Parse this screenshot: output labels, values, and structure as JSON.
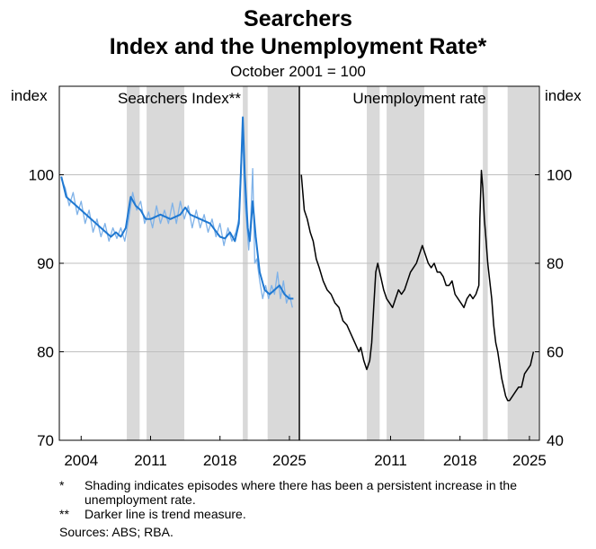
{
  "title": "Searchers",
  "title_line2": "Index and the Unemployment Rate*",
  "subtitle": "October 2001 = 100",
  "notes": [
    {
      "mark": "*",
      "text": "Shading indicates episodes where there has been a persistent increase in the unemployment rate."
    },
    {
      "mark": "**",
      "text": "Darker line is trend measure."
    }
  ],
  "source": "Sources: ABS; RBA.",
  "colors": {
    "left_series": "#1f78d1",
    "left_raw": "#7fb2e8",
    "right_series": "#000000",
    "shading": "#d9d9d9",
    "grid": "#bfbfbf"
  },
  "chart_data": [
    {
      "type": "line",
      "title": "Searchers Index**",
      "ylabel_left": "index",
      "ylim": [
        70,
        110
      ],
      "yticks": [
        70,
        80,
        90,
        100
      ],
      "xlim": [
        2001.8,
        2026.0
      ],
      "xticks": [
        "2004",
        "2011",
        "2018",
        "2025"
      ],
      "shaded_periods": [
        [
          2008.6,
          2009.9
        ],
        [
          2010.6,
          2014.4
        ],
        [
          2020.3,
          2020.8
        ],
        [
          2022.8,
          2025.9
        ]
      ],
      "series": [
        {
          "style": "trend",
          "x": [
            2002.0,
            2002.5,
            2003.0,
            2004.0,
            2005.0,
            2006.0,
            2007.0,
            2007.5,
            2008.0,
            2008.5,
            2009.0,
            2009.5,
            2010.0,
            2010.5,
            2011.0,
            2012.0,
            2013.0,
            2014.0,
            2014.5,
            2015.0,
            2016.0,
            2017.0,
            2018.0,
            2018.5,
            2019.0,
            2019.5,
            2019.9,
            2020.1,
            2020.3,
            2020.5,
            2020.8,
            2021.0,
            2021.3,
            2021.6,
            2022.0,
            2022.5,
            2023.0,
            2023.5,
            2024.0,
            2024.5,
            2025.0,
            2025.4
          ],
          "y": [
            99.8,
            97.5,
            97.0,
            96.0,
            95.0,
            94.0,
            93.0,
            93.5,
            93.0,
            94.0,
            97.5,
            96.5,
            96.0,
            95.0,
            95.0,
            95.5,
            95.0,
            95.5,
            96.3,
            95.5,
            95.0,
            94.5,
            93.0,
            92.8,
            93.5,
            92.5,
            94.5,
            100.0,
            106.5,
            100.0,
            94.0,
            92.5,
            97.0,
            93.0,
            89.0,
            87.0,
            86.5,
            87.0,
            87.5,
            86.5,
            86.0,
            86.0
          ]
        },
        {
          "style": "raw",
          "x": [
            2002.0,
            2002.4,
            2002.8,
            2003.2,
            2003.6,
            2004.0,
            2004.4,
            2004.8,
            2005.2,
            2005.6,
            2006.0,
            2006.4,
            2006.8,
            2007.2,
            2007.6,
            2008.0,
            2008.4,
            2008.8,
            2009.2,
            2009.6,
            2010.0,
            2010.4,
            2010.8,
            2011.2,
            2011.6,
            2012.0,
            2012.4,
            2012.8,
            2013.2,
            2013.6,
            2014.0,
            2014.4,
            2014.8,
            2015.2,
            2015.6,
            2016.0,
            2016.4,
            2016.8,
            2017.2,
            2017.6,
            2018.0,
            2018.4,
            2018.8,
            2019.2,
            2019.6,
            2019.9,
            2020.1,
            2020.3,
            2020.5,
            2020.7,
            2020.9,
            2021.1,
            2021.3,
            2021.5,
            2021.7,
            2022.0,
            2022.3,
            2022.6,
            2022.9,
            2023.2,
            2023.5,
            2023.8,
            2024.1,
            2024.4,
            2024.7,
            2025.0,
            2025.3
          ],
          "y": [
            99.5,
            98.5,
            96.5,
            98.0,
            95.5,
            97.0,
            94.5,
            96.0,
            93.5,
            95.0,
            93.0,
            94.5,
            92.5,
            94.0,
            92.8,
            94.0,
            92.5,
            95.0,
            98.0,
            96.0,
            97.0,
            94.5,
            95.8,
            94.0,
            96.5,
            94.5,
            96.0,
            94.5,
            96.8,
            94.5,
            97.0,
            95.0,
            96.5,
            94.0,
            96.0,
            94.0,
            95.5,
            93.5,
            95.0,
            93.0,
            94.5,
            92.0,
            94.0,
            92.5,
            93.5,
            95.0,
            101.0,
            104.0,
            97.0,
            94.5,
            91.5,
            95.0,
            100.7,
            90.0,
            90.5,
            88.0,
            86.0,
            87.5,
            86.0,
            87.5,
            86.5,
            89.0,
            86.0,
            88.0,
            85.5,
            86.5,
            85.0
          ]
        }
      ]
    },
    {
      "type": "line",
      "title": "Unemployment rate",
      "ylabel_right": "index",
      "ylim": [
        40,
        120
      ],
      "yticks": [
        40,
        60,
        80,
        100
      ],
      "xlim": [
        2001.8,
        2026.0
      ],
      "xticks": [
        "2011",
        "2018",
        "2025"
      ],
      "shaded_periods": [
        [
          2008.6,
          2009.9
        ],
        [
          2010.6,
          2014.4
        ],
        [
          2020.3,
          2020.8
        ],
        [
          2022.8,
          2025.9
        ]
      ],
      "series": [
        {
          "style": "monthly",
          "x": [
            2002.0,
            2002.3,
            2002.6,
            2002.9,
            2003.2,
            2003.5,
            2003.8,
            2004.2,
            2004.6,
            2005.0,
            2005.4,
            2005.8,
            2006.2,
            2006.6,
            2007.0,
            2007.4,
            2007.8,
            2008.0,
            2008.3,
            2008.6,
            2008.9,
            2009.1,
            2009.3,
            2009.5,
            2009.7,
            2010.0,
            2010.3,
            2010.6,
            2010.9,
            2011.2,
            2011.5,
            2011.8,
            2012.1,
            2012.4,
            2012.7,
            2013.0,
            2013.3,
            2013.6,
            2013.9,
            2014.2,
            2014.5,
            2014.8,
            2015.1,
            2015.4,
            2015.7,
            2016.0,
            2016.3,
            2016.6,
            2016.9,
            2017.2,
            2017.5,
            2017.8,
            2018.1,
            2018.4,
            2018.7,
            2019.0,
            2019.3,
            2019.6,
            2019.9,
            2020.0,
            2020.15,
            2020.3,
            2020.45,
            2020.6,
            2020.8,
            2021.0,
            2021.2,
            2021.4,
            2021.6,
            2021.8,
            2022.0,
            2022.2,
            2022.4,
            2022.6,
            2022.8,
            2023.0,
            2023.3,
            2023.6,
            2023.9,
            2024.2,
            2024.5,
            2024.8,
            2025.1,
            2025.4
          ],
          "y": [
            100.0,
            92.0,
            90.0,
            87.0,
            85.0,
            81.0,
            79.0,
            76.0,
            74.0,
            73.0,
            71.0,
            70.0,
            67.0,
            66.0,
            64.0,
            62.0,
            60.0,
            61.0,
            58.0,
            56.0,
            58.0,
            62.0,
            70.0,
            78.0,
            80.0,
            77.0,
            74.0,
            72.0,
            71.0,
            70.0,
            72.0,
            74.0,
            73.0,
            74.0,
            76.0,
            78.0,
            79.0,
            80.0,
            82.0,
            84.0,
            82.0,
            80.0,
            79.0,
            80.0,
            78.0,
            78.0,
            77.0,
            75.0,
            75.0,
            76.0,
            73.0,
            72.0,
            71.0,
            70.0,
            72.0,
            73.0,
            72.0,
            73.0,
            75.0,
            90.0,
            101.0,
            97.0,
            90.0,
            86.0,
            80.0,
            76.0,
            72.0,
            66.0,
            62.0,
            60.0,
            57.0,
            54.0,
            52.0,
            50.0,
            49.0,
            49.0,
            50.0,
            51.0,
            52.0,
            52.0,
            55.0,
            56.0,
            57.0,
            60.0
          ]
        }
      ]
    }
  ]
}
